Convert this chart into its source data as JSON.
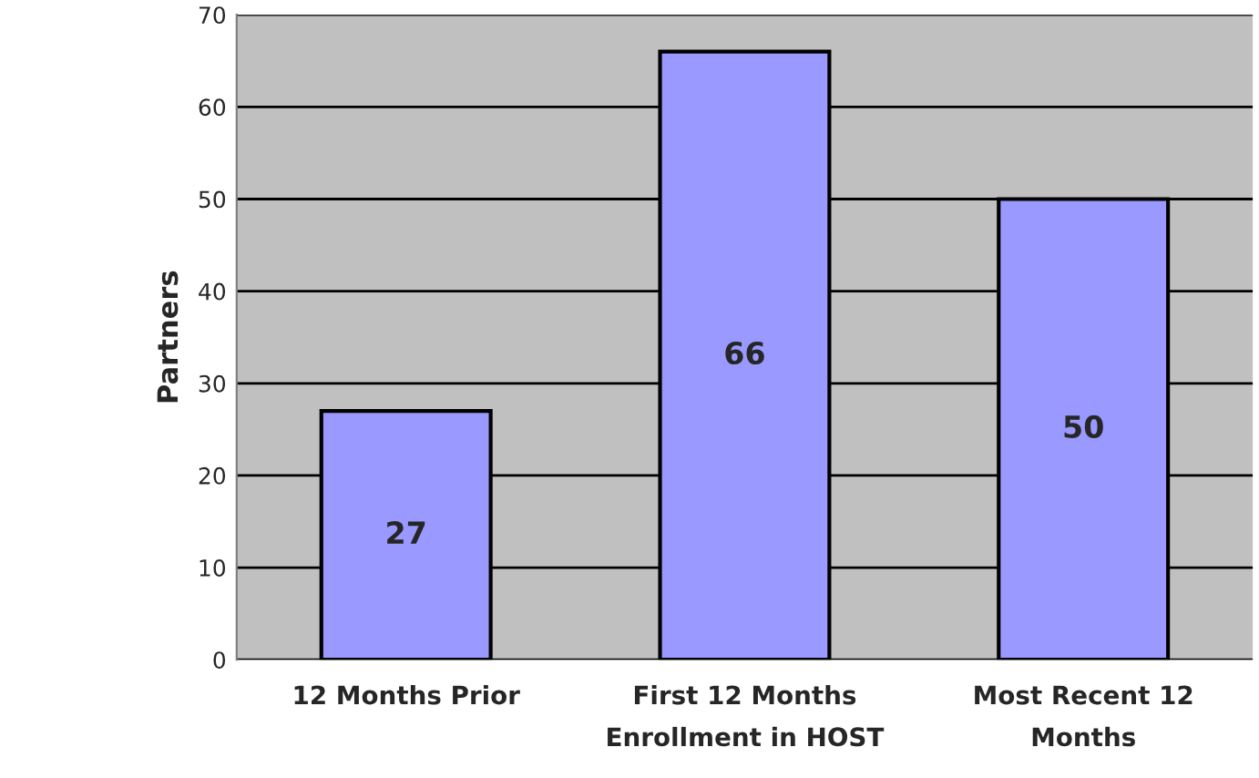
{
  "chart_data": {
    "type": "bar",
    "ylabel": "Partners",
    "categories": [
      "12 Months Prior",
      "First 12 Months\nEnrollment in HOST",
      "Most Recent 12\nMonths"
    ],
    "values": [
      27,
      66,
      50
    ],
    "color": "#9999ff",
    "ylim": [
      0,
      70
    ],
    "yticks": [
      0,
      10,
      20,
      30,
      40,
      50,
      60,
      70
    ],
    "grid": "y",
    "data_labels": true
  }
}
